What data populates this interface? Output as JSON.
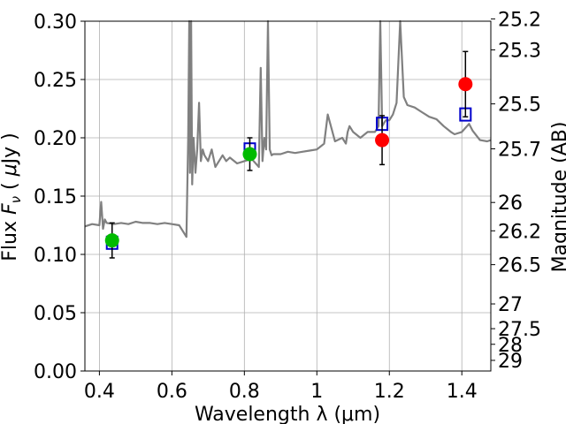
{
  "chart_data": {
    "type": "scatter",
    "title": "",
    "xlabel": "Wavelength  λ (μm)",
    "ylabel": "Flux  F_ν  ( μJy )",
    "ylabel_parts": [
      "Flux  ",
      "F",
      "ν",
      "  ( ",
      "μ",
      "Jy )"
    ],
    "y2label": "Magnitude (AB)",
    "xlim": [
      0.36,
      1.48
    ],
    "ylim": [
      0.0,
      0.3
    ],
    "grid": true,
    "x_ticks": [
      0.4,
      0.6,
      0.8,
      1.0,
      1.2,
      1.4
    ],
    "x_tick_labels": [
      "0.4",
      "0.6",
      "0.8",
      "1",
      "1.2",
      "1.4"
    ],
    "y_ticks": [
      0.0,
      0.05,
      0.1,
      0.15,
      0.2,
      0.25,
      0.3
    ],
    "y_tick_labels": [
      "0.00",
      "0.05",
      "0.10",
      "0.15",
      "0.20",
      "0.25",
      "0.30"
    ],
    "y2_ticks": [
      25.2,
      25.3,
      25.5,
      25.7,
      26,
      26.2,
      26.5,
      27,
      27.5,
      28,
      29
    ],
    "y2_tick_labels": [
      "25.2",
      "25.3",
      "25.5",
      "25.7",
      "26",
      "26.2",
      "26.5",
      "27",
      "27.5",
      "28",
      "29"
    ],
    "series": [
      {
        "name": "model spectrum",
        "kind": "line",
        "color": "#808080",
        "x": [
          0.36,
          0.38,
          0.4,
          0.405,
          0.41,
          0.415,
          0.42,
          0.44,
          0.46,
          0.48,
          0.5,
          0.52,
          0.54,
          0.56,
          0.58,
          0.6,
          0.62,
          0.63,
          0.64,
          0.645,
          0.648,
          0.65,
          0.653,
          0.656,
          0.66,
          0.665,
          0.67,
          0.675,
          0.68,
          0.685,
          0.69,
          0.7,
          0.71,
          0.72,
          0.73,
          0.74,
          0.75,
          0.76,
          0.78,
          0.8,
          0.82,
          0.84,
          0.845,
          0.85,
          0.855,
          0.86,
          0.865,
          0.87,
          0.875,
          0.88,
          0.9,
          0.92,
          0.94,
          0.96,
          0.98,
          1.0,
          1.02,
          1.03,
          1.05,
          1.07,
          1.08,
          1.085,
          1.09,
          1.1,
          1.12,
          1.14,
          1.16,
          1.17,
          1.175,
          1.18,
          1.19,
          1.2,
          1.21,
          1.22,
          1.23,
          1.24,
          1.25,
          1.27,
          1.29,
          1.31,
          1.33,
          1.35,
          1.37,
          1.38,
          1.4,
          1.42,
          1.43,
          1.45,
          1.47,
          1.48
        ],
        "y": [
          0.124,
          0.126,
          0.125,
          0.145,
          0.122,
          0.13,
          0.127,
          0.126,
          0.127,
          0.126,
          0.128,
          0.127,
          0.127,
          0.126,
          0.127,
          0.126,
          0.125,
          0.12,
          0.115,
          0.2,
          0.3,
          0.17,
          0.3,
          0.16,
          0.2,
          0.17,
          0.19,
          0.23,
          0.18,
          0.19,
          0.185,
          0.18,
          0.19,
          0.175,
          0.18,
          0.185,
          0.18,
          0.183,
          0.178,
          0.18,
          0.182,
          0.175,
          0.26,
          0.18,
          0.2,
          0.19,
          0.3,
          0.19,
          0.185,
          0.186,
          0.186,
          0.188,
          0.187,
          0.188,
          0.189,
          0.19,
          0.195,
          0.22,
          0.197,
          0.2,
          0.195,
          0.205,
          0.21,
          0.205,
          0.2,
          0.205,
          0.205,
          0.21,
          0.3,
          0.21,
          0.215,
          0.215,
          0.22,
          0.23,
          0.3,
          0.235,
          0.228,
          0.226,
          0.222,
          0.218,
          0.216,
          0.21,
          0.205,
          0.203,
          0.205,
          0.212,
          0.206,
          0.198,
          0.197,
          0.198
        ]
      },
      {
        "name": "green observed",
        "kind": "points",
        "marker": "filled-circle",
        "color": "#00bb00",
        "x": [
          0.435,
          0.815
        ],
        "y": [
          0.112,
          0.186
        ],
        "yerr": [
          0.015,
          0.014
        ]
      },
      {
        "name": "red observed",
        "kind": "points",
        "marker": "filled-circle",
        "color": "#ff0000",
        "x": [
          1.18,
          1.41
        ],
        "y": [
          0.198,
          0.246
        ],
        "yerr": [
          0.021,
          0.028
        ]
      },
      {
        "name": "model photometry",
        "kind": "points",
        "marker": "open-square",
        "color": "#0000cc",
        "x": [
          0.435,
          0.815,
          1.18,
          1.41
        ],
        "y": [
          0.11,
          0.19,
          0.212,
          0.22
        ]
      }
    ]
  }
}
